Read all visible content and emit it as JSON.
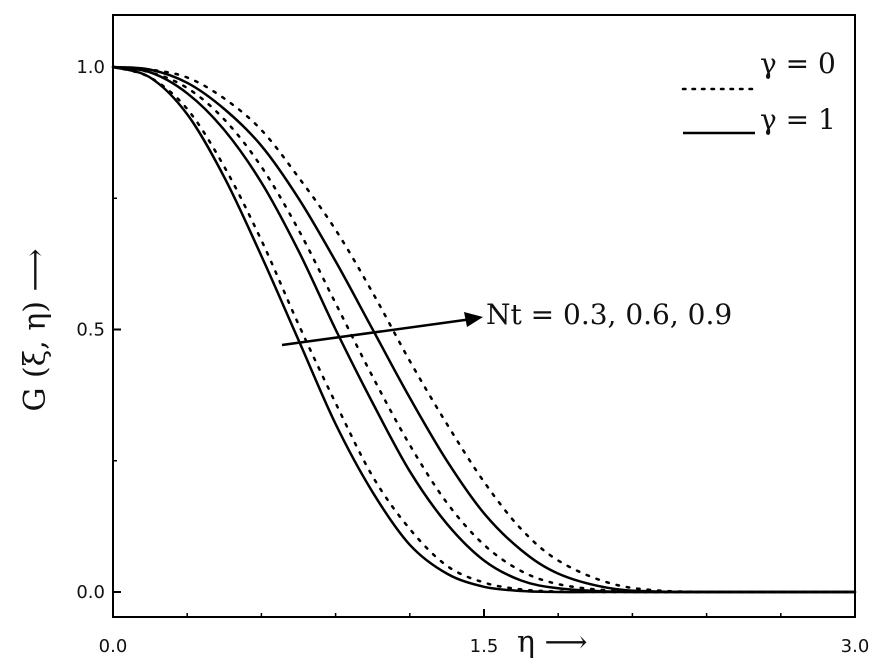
{
  "chart_data": {
    "type": "line",
    "ylabel": "G (ξ, η) ⟶",
    "xlabel": "η ⟶",
    "xlim": [
      0,
      3.0
    ],
    "ylim": [
      0,
      1.0
    ],
    "x_ticks": [
      0.0,
      1.5,
      3.0
    ],
    "x_tick_labels": [
      "0.0",
      "1.5",
      "3.0"
    ],
    "y_ticks": [
      0.0,
      0.5,
      1.0
    ],
    "y_tick_labels": [
      "0.0",
      "0.5",
      "1.0"
    ],
    "grid": false,
    "legend_position": "top-right",
    "legend": [
      {
        "label": "γ = 0",
        "style": "dotted"
      },
      {
        "label": "γ = 1",
        "style": "solid"
      }
    ],
    "annotation": "Nt = 0.3, 0.6, 0.9",
    "series": [
      {
        "style": "solid",
        "Nt": 0.3,
        "x": [
          0.0,
          0.15,
          0.3,
          0.45,
          0.6,
          0.75,
          0.9,
          1.05,
          1.2,
          1.35,
          1.5,
          1.65,
          1.8,
          2.0,
          2.2,
          2.5,
          3.0
        ],
        "y": [
          1.0,
          0.98,
          0.91,
          0.79,
          0.64,
          0.48,
          0.32,
          0.19,
          0.09,
          0.035,
          0.01,
          0.002,
          0.0,
          0.0,
          0.0,
          0.0,
          0.0
        ]
      },
      {
        "style": "dotted",
        "Nt": 0.3,
        "x": [
          0.0,
          0.15,
          0.3,
          0.45,
          0.6,
          0.75,
          0.9,
          1.05,
          1.2,
          1.35,
          1.5,
          1.65,
          1.8,
          2.0,
          2.2,
          2.5,
          3.0
        ],
        "y": [
          1.0,
          0.98,
          0.92,
          0.81,
          0.67,
          0.51,
          0.36,
          0.22,
          0.12,
          0.05,
          0.018,
          0.005,
          0.001,
          0.0,
          0.0,
          0.0,
          0.0
        ]
      },
      {
        "style": "solid",
        "Nt": 0.6,
        "x": [
          0.0,
          0.15,
          0.3,
          0.45,
          0.6,
          0.75,
          0.9,
          1.05,
          1.2,
          1.35,
          1.5,
          1.65,
          1.8,
          2.0,
          2.2,
          2.5,
          3.0
        ],
        "y": [
          1.0,
          0.99,
          0.95,
          0.88,
          0.78,
          0.65,
          0.5,
          0.36,
          0.23,
          0.13,
          0.06,
          0.022,
          0.007,
          0.001,
          0.0,
          0.0,
          0.0
        ]
      },
      {
        "style": "dotted",
        "Nt": 0.6,
        "x": [
          0.0,
          0.15,
          0.3,
          0.45,
          0.6,
          0.75,
          0.9,
          1.05,
          1.2,
          1.35,
          1.5,
          1.65,
          1.8,
          2.0,
          2.2,
          2.5,
          3.0
        ],
        "y": [
          1.0,
          0.99,
          0.96,
          0.9,
          0.81,
          0.69,
          0.55,
          0.41,
          0.28,
          0.17,
          0.09,
          0.04,
          0.015,
          0.003,
          0.0,
          0.0,
          0.0
        ]
      },
      {
        "style": "solid",
        "Nt": 0.9,
        "x": [
          0.0,
          0.15,
          0.3,
          0.45,
          0.6,
          0.75,
          0.9,
          1.05,
          1.2,
          1.35,
          1.5,
          1.65,
          1.8,
          2.0,
          2.2,
          2.5,
          3.0
        ],
        "y": [
          1.0,
          0.995,
          0.97,
          0.92,
          0.85,
          0.75,
          0.63,
          0.5,
          0.37,
          0.25,
          0.15,
          0.08,
          0.035,
          0.008,
          0.001,
          0.0,
          0.0
        ]
      },
      {
        "style": "dotted",
        "Nt": 0.9,
        "x": [
          0.0,
          0.15,
          0.3,
          0.45,
          0.6,
          0.75,
          0.9,
          1.05,
          1.2,
          1.35,
          1.5,
          1.65,
          1.8,
          2.0,
          2.2,
          2.5,
          3.0
        ],
        "y": [
          1.0,
          0.995,
          0.98,
          0.94,
          0.88,
          0.79,
          0.69,
          0.57,
          0.44,
          0.32,
          0.21,
          0.12,
          0.06,
          0.018,
          0.003,
          0.0,
          0.0
        ]
      }
    ]
  }
}
